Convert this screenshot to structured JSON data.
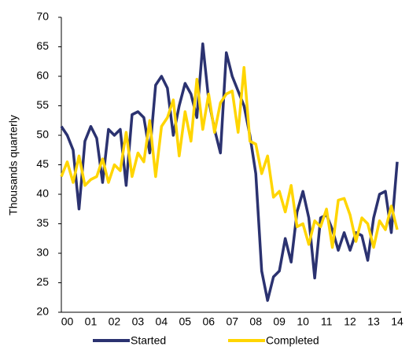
{
  "chart_data": {
    "type": "line",
    "y_label": "Thousands quarterly",
    "categories": [
      null,
      "00",
      null,
      null,
      null,
      "01",
      null,
      null,
      null,
      "02",
      null,
      null,
      null,
      "03",
      null,
      null,
      null,
      "04",
      null,
      null,
      null,
      "05",
      null,
      null,
      null,
      "06",
      null,
      null,
      null,
      "07",
      null,
      null,
      null,
      "08",
      null,
      null,
      null,
      "09",
      null,
      null,
      null,
      "10",
      null,
      null,
      null,
      "11",
      null,
      null,
      null,
      "12",
      null,
      null,
      null,
      "13",
      null,
      null,
      null,
      "14"
    ],
    "series": [
      {
        "name": "Started",
        "color": "#2b3270",
        "values": [
          51.5,
          50,
          47.5,
          37.5,
          49,
          51.5,
          49.5,
          42,
          51,
          50,
          51,
          41.5,
          53.5,
          54,
          53,
          47,
          58.5,
          60,
          58,
          50,
          55,
          58.8,
          57,
          53,
          65.5,
          56,
          51,
          47,
          64,
          60,
          57.5,
          55,
          50,
          43.5,
          27,
          22,
          26,
          27,
          32.5,
          28.5,
          37,
          40.5,
          36,
          25.8,
          36,
          36.5,
          34,
          30.5,
          33.5,
          30.5,
          33.5,
          33,
          28.8,
          36,
          40,
          40.5,
          33.5,
          45.5
        ]
      },
      {
        "name": "Completed",
        "color": "#ffd500",
        "values": [
          43,
          45.5,
          42,
          46.5,
          41.5,
          42.5,
          43,
          46,
          42,
          45,
          44,
          50.5,
          43,
          47,
          45.5,
          52.5,
          43,
          51.5,
          53,
          56,
          46.5,
          54,
          49,
          59.5,
          51,
          57,
          50.5,
          55.5,
          57,
          57.5,
          50.5,
          61.5,
          49,
          48.5,
          43.5,
          46.5,
          39.5,
          40.5,
          37,
          41.5,
          34.5,
          35,
          31.5,
          35.5,
          34.5,
          37.5,
          31,
          39,
          39.3,
          36.5,
          32,
          36,
          35,
          31,
          35.5,
          34,
          38,
          34
        ]
      }
    ],
    "ylim": [
      20,
      70
    ],
    "yticks": [
      20,
      25,
      30,
      35,
      40,
      45,
      50,
      55,
      60,
      65,
      70
    ],
    "grid": false
  }
}
